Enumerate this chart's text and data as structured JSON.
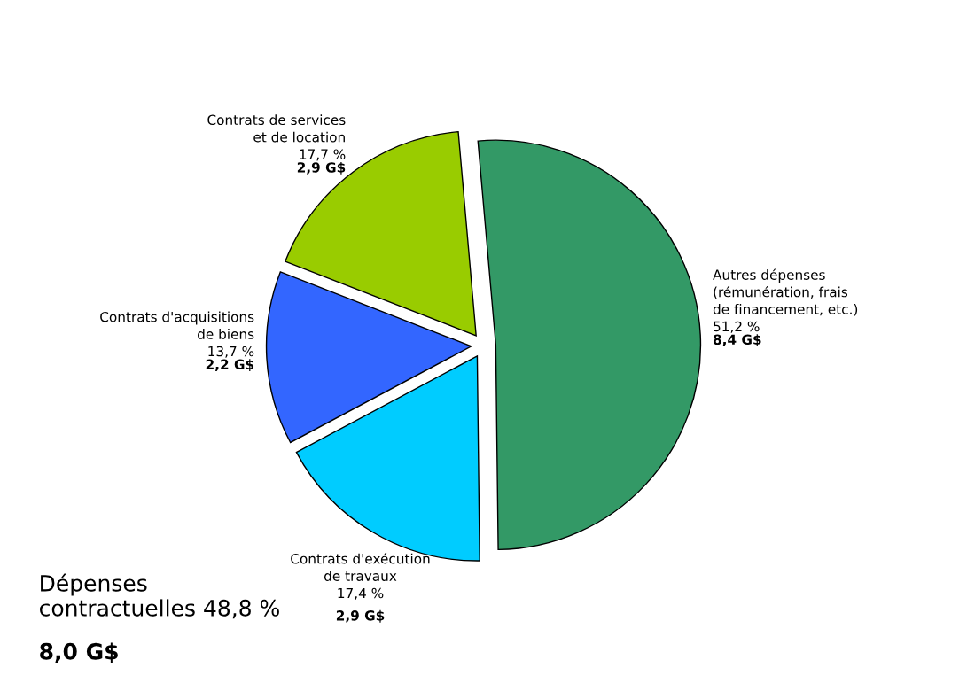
{
  "chart_data": {
    "type": "pie",
    "categories": [
      "Autres dépenses\n(rémunération, frais\nde financement, etc.)",
      "Contrats d'exécution\nde travaux",
      "Contrats d'acquisitions\nde biens",
      "Contrats de services\net de location"
    ],
    "values": [
      51.2,
      17.4,
      13.7,
      17.7
    ],
    "value_labels": [
      "51,2 %",
      "17,4 %",
      "13,7 %",
      "17,7 %"
    ],
    "colors": [
      "#339966",
      "#00ccff",
      "#3366ff",
      "#99cc00"
    ],
    "annotations": [
      "8,4 G$",
      "2,9 G$",
      "2,2 G$",
      "2,9 G$",
      "Dépenses\ncontractuelles 48,8 %",
      "8,0 G$"
    ]
  }
}
